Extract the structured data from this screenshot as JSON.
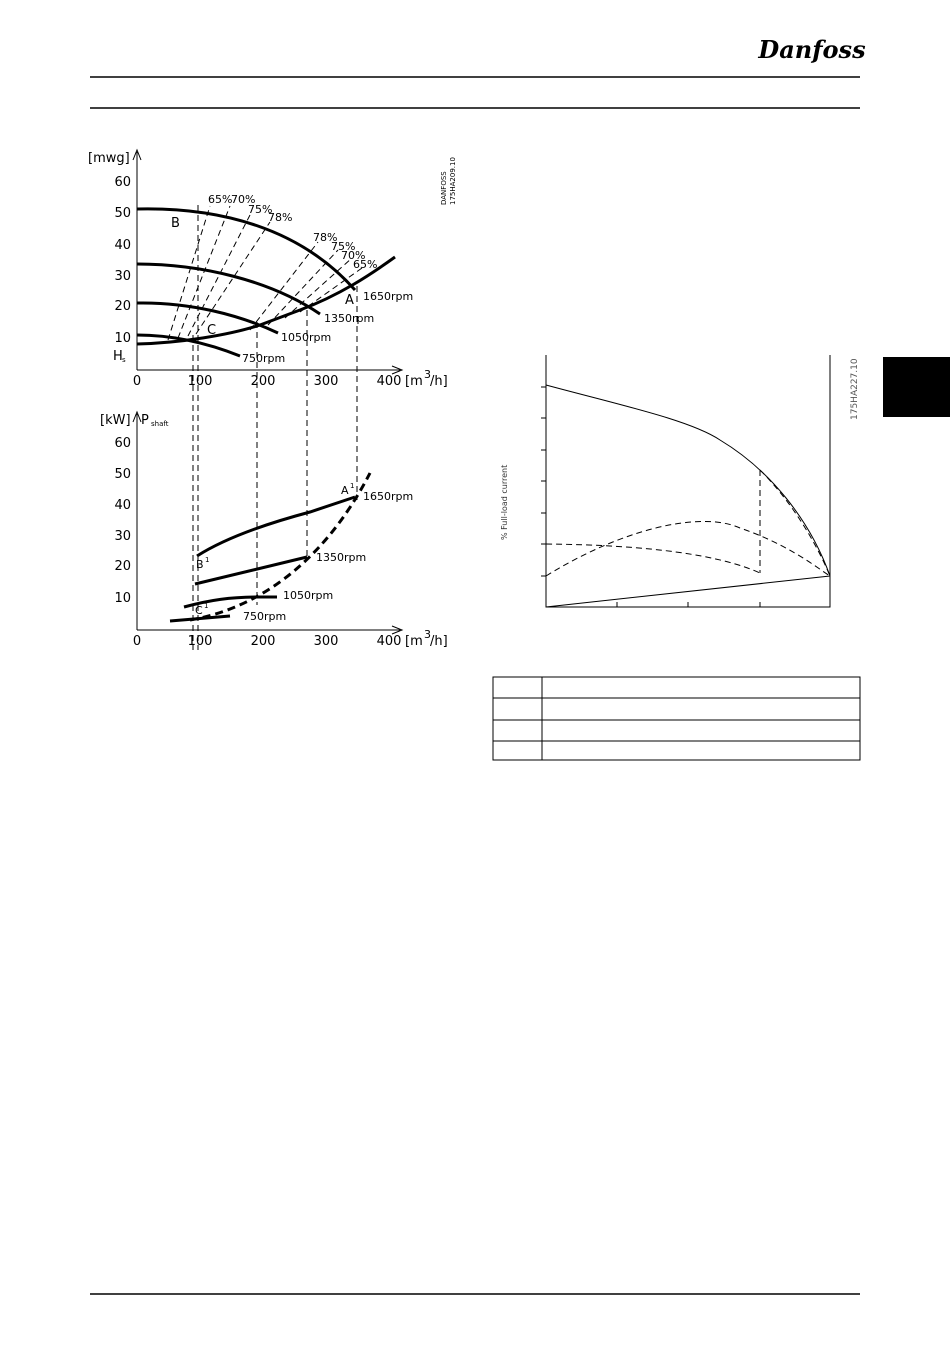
{
  "header": {
    "logo": "Danfoss"
  },
  "figure_pump": {
    "code": [
      "DANFOSS",
      "175HA209.10"
    ],
    "head": {
      "y_unit": "[mwg]",
      "y_labels": [
        "60",
        "50",
        "40",
        "30",
        "20",
        "10"
      ],
      "hs": "H",
      "hs_sub": "s",
      "x_labels": [
        "0",
        "100",
        "200",
        "300",
        "400"
      ],
      "x_unit": [
        "[m",
        "3",
        " /h]"
      ],
      "points": [
        "B",
        "A",
        "C"
      ],
      "rpm": [
        "1650rpm",
        "1350rpm",
        "1050rpm",
        "750rpm"
      ],
      "efficiency_left": [
        "65%",
        "70%",
        "75%",
        "78%"
      ],
      "efficiency_right": [
        "78%",
        "75%",
        "70%",
        "65%"
      ]
    },
    "power": {
      "y_unit": "[kW]",
      "p": "P",
      "p_sub": "shaft",
      "y_labels": [
        "60",
        "50",
        "40",
        "30",
        "20",
        "10"
      ],
      "x_labels": [
        "0",
        "100",
        "200",
        "300",
        "400"
      ],
      "x_unit": [
        "[m",
        "3",
        " /h]"
      ],
      "points": [
        [
          "A",
          "1"
        ],
        [
          "B",
          "1"
        ],
        [
          "C",
          "1"
        ]
      ],
      "rpm": [
        "1650rpm",
        "1350rpm",
        "1050rpm",
        "750rpm"
      ]
    }
  },
  "figure_current": {
    "code": "175HA227.10",
    "y_label": "% Full-load current"
  }
}
